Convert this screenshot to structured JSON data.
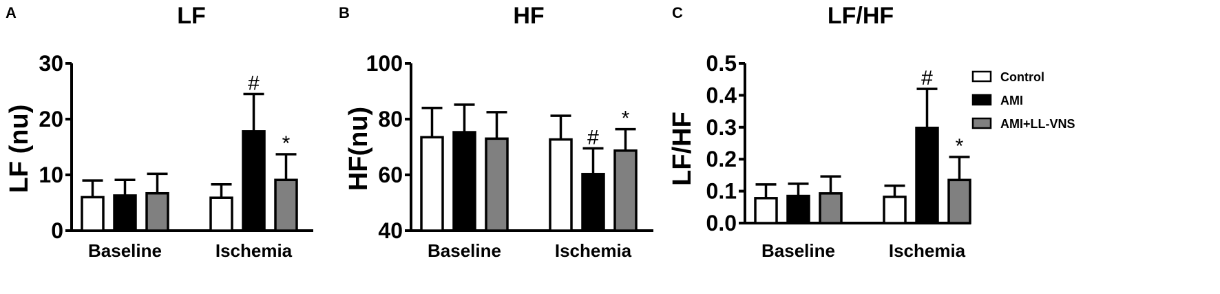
{
  "colors": {
    "Control": "#ffffff",
    "AMI": "#000000",
    "AMI+LL-VNS": "#808080",
    "stroke": "#000000"
  },
  "legend": {
    "placement": "right",
    "items": [
      "Control",
      "AMI",
      "AMI+LL-VNS"
    ]
  },
  "chart_data": [
    {
      "panel": "A",
      "type": "bar",
      "title": "LF",
      "ylabel": "LF (nu)",
      "xlabel": "",
      "categories": [
        "Baseline",
        "Ischemia"
      ],
      "ylim": [
        0,
        30
      ],
      "yticks": [
        "0",
        "10",
        "20",
        "30"
      ],
      "grid": false,
      "series": [
        {
          "name": "Control",
          "values": [
            6.0,
            5.9
          ],
          "errors": [
            3.0,
            2.4
          ],
          "marks": [
            "",
            ""
          ]
        },
        {
          "name": "AMI",
          "values": [
            6.3,
            17.8
          ],
          "errors": [
            2.8,
            6.7
          ],
          "marks": [
            "",
            "#"
          ]
        },
        {
          "name": "AMI+LL-VNS",
          "values": [
            6.7,
            9.1
          ],
          "errors": [
            3.5,
            4.6
          ],
          "marks": [
            "",
            "*"
          ]
        }
      ]
    },
    {
      "panel": "B",
      "type": "bar",
      "title": "HF",
      "ylabel": "HF(nu)",
      "xlabel": "",
      "categories": [
        "Baseline",
        "Ischemia"
      ],
      "ylim": [
        40,
        100
      ],
      "yticks": [
        "40",
        "60",
        "80",
        "100"
      ],
      "grid": false,
      "series": [
        {
          "name": "Control",
          "values": [
            73.5,
            72.7
          ],
          "errors": [
            10.5,
            8.5
          ],
          "marks": [
            "",
            ""
          ]
        },
        {
          "name": "AMI",
          "values": [
            75.3,
            60.3
          ],
          "errors": [
            9.9,
            9.2
          ],
          "marks": [
            "",
            "#"
          ]
        },
        {
          "name": "AMI+LL-VNS",
          "values": [
            73.0,
            68.7
          ],
          "errors": [
            9.5,
            7.7
          ],
          "marks": [
            "",
            "*"
          ]
        }
      ]
    },
    {
      "panel": "C",
      "type": "bar",
      "title": "LF/HF",
      "ylabel": "LF/HF",
      "xlabel": "",
      "categories": [
        "Baseline",
        "Ischemia"
      ],
      "ylim": [
        0,
        0.5
      ],
      "yticks": [
        "0.0",
        "0.1",
        "0.2",
        "0.3",
        "0.4",
        "0.5"
      ],
      "grid": false,
      "series": [
        {
          "name": "Control",
          "values": [
            0.078,
            0.082
          ],
          "errors": [
            0.043,
            0.035
          ],
          "marks": [
            "",
            ""
          ]
        },
        {
          "name": "AMI",
          "values": [
            0.085,
            0.298
          ],
          "errors": [
            0.038,
            0.122
          ],
          "marks": [
            "",
            "#"
          ]
        },
        {
          "name": "AMI+LL-VNS",
          "values": [
            0.093,
            0.135
          ],
          "errors": [
            0.053,
            0.072
          ],
          "marks": [
            "",
            "*"
          ]
        }
      ]
    }
  ]
}
